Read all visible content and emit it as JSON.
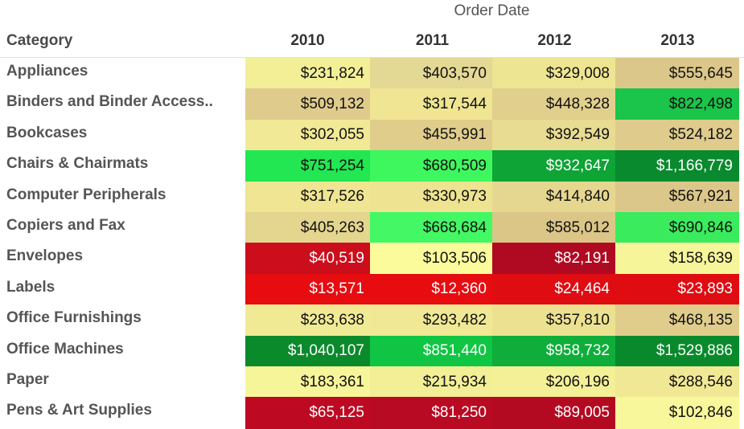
{
  "chart_data": {
    "type": "table",
    "column_group_title": "Order Date",
    "row_header": "Category",
    "columns": [
      "2010",
      "2011",
      "2012",
      "2013"
    ],
    "rows": [
      {
        "category": "Appliances",
        "values": [
          231824,
          403570,
          329008,
          555645
        ],
        "labels": [
          "$231,824",
          "$403,570",
          "$329,008",
          "$555,645"
        ],
        "colors": [
          "#f3ef97",
          "#e4d895",
          "#eee592",
          "#dcc78a"
        ],
        "text": [
          "dark",
          "dark",
          "dark",
          "dark"
        ]
      },
      {
        "category": "Binders and Binder Access..",
        "values": [
          509132,
          317544,
          448328,
          822498
        ],
        "labels": [
          "$509,132",
          "$317,544",
          "$448,328",
          "$822,498"
        ],
        "colors": [
          "#dfcb8c",
          "#efe592",
          "#e1cf8d",
          "#1bc44a"
        ],
        "text": [
          "dark",
          "dark",
          "dark",
          "dark"
        ]
      },
      {
        "category": "Bookcases",
        "values": [
          302055,
          455991,
          392549,
          524182
        ],
        "labels": [
          "$302,055",
          "$455,991",
          "$392,549",
          "$524,182"
        ],
        "colors": [
          "#f1e996",
          "#e0cd8c",
          "#e8db92",
          "#dfcb8c"
        ],
        "text": [
          "dark",
          "dark",
          "dark",
          "dark"
        ]
      },
      {
        "category": "Chairs & Chairmats",
        "values": [
          751254,
          680509,
          932647,
          1166779
        ],
        "labels": [
          "$751,254",
          "$680,509",
          "$932,647",
          "$1,166,779"
        ],
        "colors": [
          "#22e652",
          "#3ef75f",
          "#0ea436",
          "#0a8a2e"
        ],
        "text": [
          "dark",
          "dark",
          "light",
          "light"
        ]
      },
      {
        "category": "Computer Peripherals",
        "values": [
          317526,
          330973,
          414840,
          567921
        ],
        "labels": [
          "$317,526",
          "$330,973",
          "$414,840",
          "$567,921"
        ],
        "colors": [
          "#efe592",
          "#ede390",
          "#e6d790",
          "#dcc78a"
        ],
        "text": [
          "dark",
          "dark",
          "dark",
          "dark"
        ]
      },
      {
        "category": "Copiers and Fax",
        "values": [
          405263,
          668684,
          585012,
          690846
        ],
        "labels": [
          "$405,263",
          "$668,684",
          "$585,012",
          "$690,846"
        ],
        "colors": [
          "#e4d58f",
          "#44f765",
          "#dbc687",
          "#3aec5d"
        ],
        "text": [
          "dark",
          "dark",
          "dark",
          "dark"
        ]
      },
      {
        "category": "Envelopes",
        "values": [
          40519,
          103506,
          82191,
          158639
        ],
        "labels": [
          "$40,519",
          "$103,506",
          "$82,191",
          "$158,639"
        ],
        "colors": [
          "#cc0d1c",
          "#fbfb9c",
          "#b00a22",
          "#f7f59a"
        ],
        "text": [
          "light",
          "dark",
          "light",
          "dark"
        ]
      },
      {
        "category": "Labels",
        "values": [
          13571,
          12360,
          24464,
          23893
        ],
        "labels": [
          "$13,571",
          "$12,360",
          "$24,464",
          "$23,893"
        ],
        "colors": [
          "#e60c10",
          "#e60c10",
          "#df0d12",
          "#df0d12"
        ],
        "text": [
          "light",
          "light",
          "light",
          "light"
        ]
      },
      {
        "category": "Office Furnishings",
        "values": [
          283638,
          293482,
          357810,
          468135
        ],
        "labels": [
          "$283,638",
          "$293,482",
          "$357,810",
          "$468,135"
        ],
        "colors": [
          "#f1ea95",
          "#f0e894",
          "#ece190",
          "#e0cd8c"
        ],
        "text": [
          "dark",
          "dark",
          "dark",
          "dark"
        ]
      },
      {
        "category": "Office Machines",
        "values": [
          1040107,
          851440,
          958732,
          1529886
        ],
        "labels": [
          "$1,040,107",
          "$851,440",
          "$958,732",
          "$1,529,886"
        ],
        "colors": [
          "#0b8a2c",
          "#10c544",
          "#0fae3a",
          "#088a2c"
        ],
        "text": [
          "light",
          "light",
          "light",
          "light"
        ]
      },
      {
        "category": "Paper",
        "values": [
          183361,
          215934,
          206196,
          288546
        ],
        "labels": [
          "$183,361",
          "$215,934",
          "$206,196",
          "$288,546"
        ],
        "colors": [
          "#f7f599",
          "#f3ef97",
          "#f4f098",
          "#f0e894"
        ],
        "text": [
          "dark",
          "dark",
          "dark",
          "dark"
        ]
      },
      {
        "category": "Pens & Art Supplies",
        "values": [
          65125,
          81250,
          89005,
          102846
        ],
        "labels": [
          "$65,125",
          "$81,250",
          "$89,005",
          "$102,846"
        ],
        "colors": [
          "#bd0a22",
          "#b80a22",
          "#b30a22",
          "#f8f79c"
        ],
        "text": [
          "light",
          "light",
          "light",
          "dark"
        ]
      }
    ]
  }
}
